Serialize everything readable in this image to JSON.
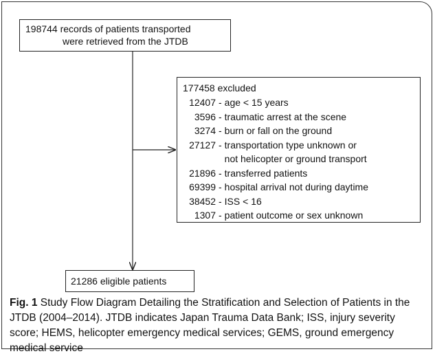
{
  "nodes": [
    {
      "label": [
        "198744 records of patients transported",
        "were retrieved from the JTDB"
      ]
    },
    {
      "label": "177458 excluded",
      "items": [
        {
          "count": "12407",
          "text": "age < 15 years"
        },
        {
          "count": "3596",
          "text": "traumatic arrest at the scene"
        },
        {
          "count": "3274",
          "text": "burn or fall on the ground"
        },
        {
          "count": "27127",
          "text": "transportation type unknown or",
          "text_continued": "not helicopter or ground transport"
        },
        {
          "count": "21896",
          "text": "transferred patients"
        },
        {
          "count": "69399",
          "text": "hospital arrival not during daytime"
        },
        {
          "count": "38452",
          "text": "ISS < 16"
        },
        {
          "count": "1307",
          "text": "patient outcome or sex unknown"
        }
      ]
    },
    {
      "label": "21286 eligible patients"
    }
  ],
  "caption": {
    "label": "Fig. 1",
    "text": "Study Flow Diagram Detailing the Stratification and Selection of Patients in the JTDB (2004–2014). JTDB indicates Japan Trauma Data Bank; ISS, injury severity score; HEMS, helicopter emergency medical services; GEMS, ground emergency medical service"
  }
}
